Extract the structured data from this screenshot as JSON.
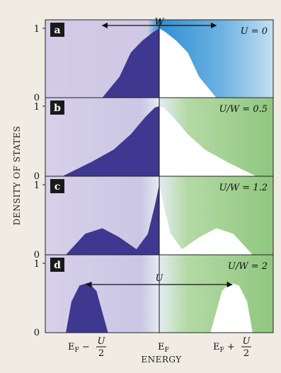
{
  "figure": {
    "y_axis_label": "DENSITY OF STATES",
    "x_axis_label": "ENERGY",
    "x_ticks": {
      "left_main": "E",
      "left_sub": "F",
      "left_rest": " − ",
      "left_frac_num": "U",
      "left_frac_den": "2",
      "center_main": "E",
      "center_sub": "F",
      "right_main": "E",
      "right_sub": "F",
      "right_rest": " + ",
      "right_frac_num": "U",
      "right_frac_den": "2"
    },
    "colors": {
      "filled": "#3f3890",
      "empty": "#ffffff",
      "left_bg": "#cfc8e6",
      "blue_bg": "#2f8fd4",
      "green_bg": "#9ccf88"
    }
  },
  "chart_data": [
    {
      "type": "area",
      "panel_label": "a",
      "param_label": "U = 0",
      "arrow_label": "W",
      "y_ticks": [
        "0",
        "1"
      ],
      "ylim": [
        0,
        1.2
      ],
      "background": "blue",
      "x": [
        -1.0,
        -0.5,
        -0.35,
        -0.25,
        -0.15,
        -0.05,
        0.0,
        0.05,
        0.15,
        0.25,
        0.35,
        0.5,
        1.0
      ],
      "y": [
        0,
        0,
        0.3,
        0.65,
        0.82,
        0.95,
        1.0,
        0.95,
        0.82,
        0.65,
        0.3,
        0,
        0
      ]
    },
    {
      "type": "area",
      "panel_label": "b",
      "param_label": "U/W = 0.5",
      "y_ticks": [
        "0",
        "1"
      ],
      "ylim": [
        0,
        1.2
      ],
      "background": "green",
      "x": [
        -1.0,
        -0.85,
        -0.6,
        -0.4,
        -0.25,
        -0.12,
        -0.04,
        0.0,
        0.04,
        0.12,
        0.25,
        0.4,
        0.6,
        0.85,
        1.0
      ],
      "y": [
        0,
        0.0,
        0.2,
        0.38,
        0.6,
        0.85,
        0.98,
        1.0,
        0.98,
        0.85,
        0.6,
        0.38,
        0.2,
        0.0,
        0
      ]
    },
    {
      "type": "area",
      "panel_label": "c",
      "param_label": "U/W = 1.2",
      "y_ticks": [
        "0",
        "1"
      ],
      "ylim": [
        0,
        1.2
      ],
      "background": "green",
      "x": [
        -1.0,
        -0.82,
        -0.65,
        -0.5,
        -0.35,
        -0.2,
        -0.1,
        -0.04,
        0.0,
        0.04,
        0.1,
        0.2,
        0.35,
        0.5,
        0.65,
        0.82,
        1.0
      ],
      "y": [
        0,
        0.0,
        0.3,
        0.38,
        0.25,
        0.08,
        0.3,
        0.7,
        1.0,
        0.7,
        0.3,
        0.08,
        0.25,
        0.38,
        0.3,
        0.0,
        0
      ]
    },
    {
      "type": "area",
      "panel_label": "d",
      "param_label": "U/W = 2",
      "arrow_label": "U",
      "y_ticks": [
        "0",
        "1"
      ],
      "ylim": [
        0,
        1.2
      ],
      "background": "green",
      "x": [
        -1.0,
        -0.82,
        -0.77,
        -0.7,
        -0.62,
        -0.55,
        -0.5,
        -0.45,
        0.45,
        0.5,
        0.55,
        0.62,
        0.7,
        0.77,
        0.82,
        1.0
      ],
      "y": [
        0,
        0,
        0.45,
        0.68,
        0.72,
        0.6,
        0.3,
        0,
        0,
        0.3,
        0.6,
        0.72,
        0.68,
        0.45,
        0,
        0
      ]
    }
  ]
}
